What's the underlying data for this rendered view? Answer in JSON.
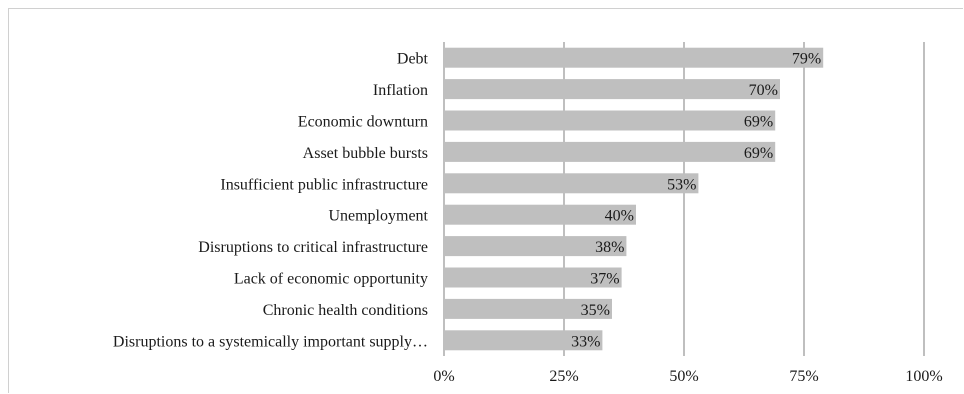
{
  "chart_data": {
    "type": "bar",
    "orientation": "horizontal",
    "categories": [
      "Debt",
      "Inflation",
      "Economic downturn",
      "Asset bubble bursts",
      "Insufficient public infrastructure",
      "Unemployment",
      "Disruptions to critical infrastructure",
      "Lack of economic opportunity",
      "Chronic health conditions",
      "Disruptions to a systemically important supply…"
    ],
    "values": [
      79,
      70,
      69,
      69,
      53,
      40,
      38,
      37,
      35,
      33
    ],
    "value_labels": [
      "79%",
      "70%",
      "69%",
      "69%",
      "53%",
      "40%",
      "38%",
      "37%",
      "35%",
      "33%"
    ],
    "xlim": [
      0,
      100
    ],
    "x_ticks": [
      0,
      25,
      50,
      75,
      100
    ],
    "x_tick_labels": [
      "0%",
      "25%",
      "50%",
      "75%",
      "100%"
    ],
    "grid": true,
    "legend": "none",
    "colors": {
      "bar": "#bfbfbf",
      "grid": "#7f7f7f"
    }
  }
}
